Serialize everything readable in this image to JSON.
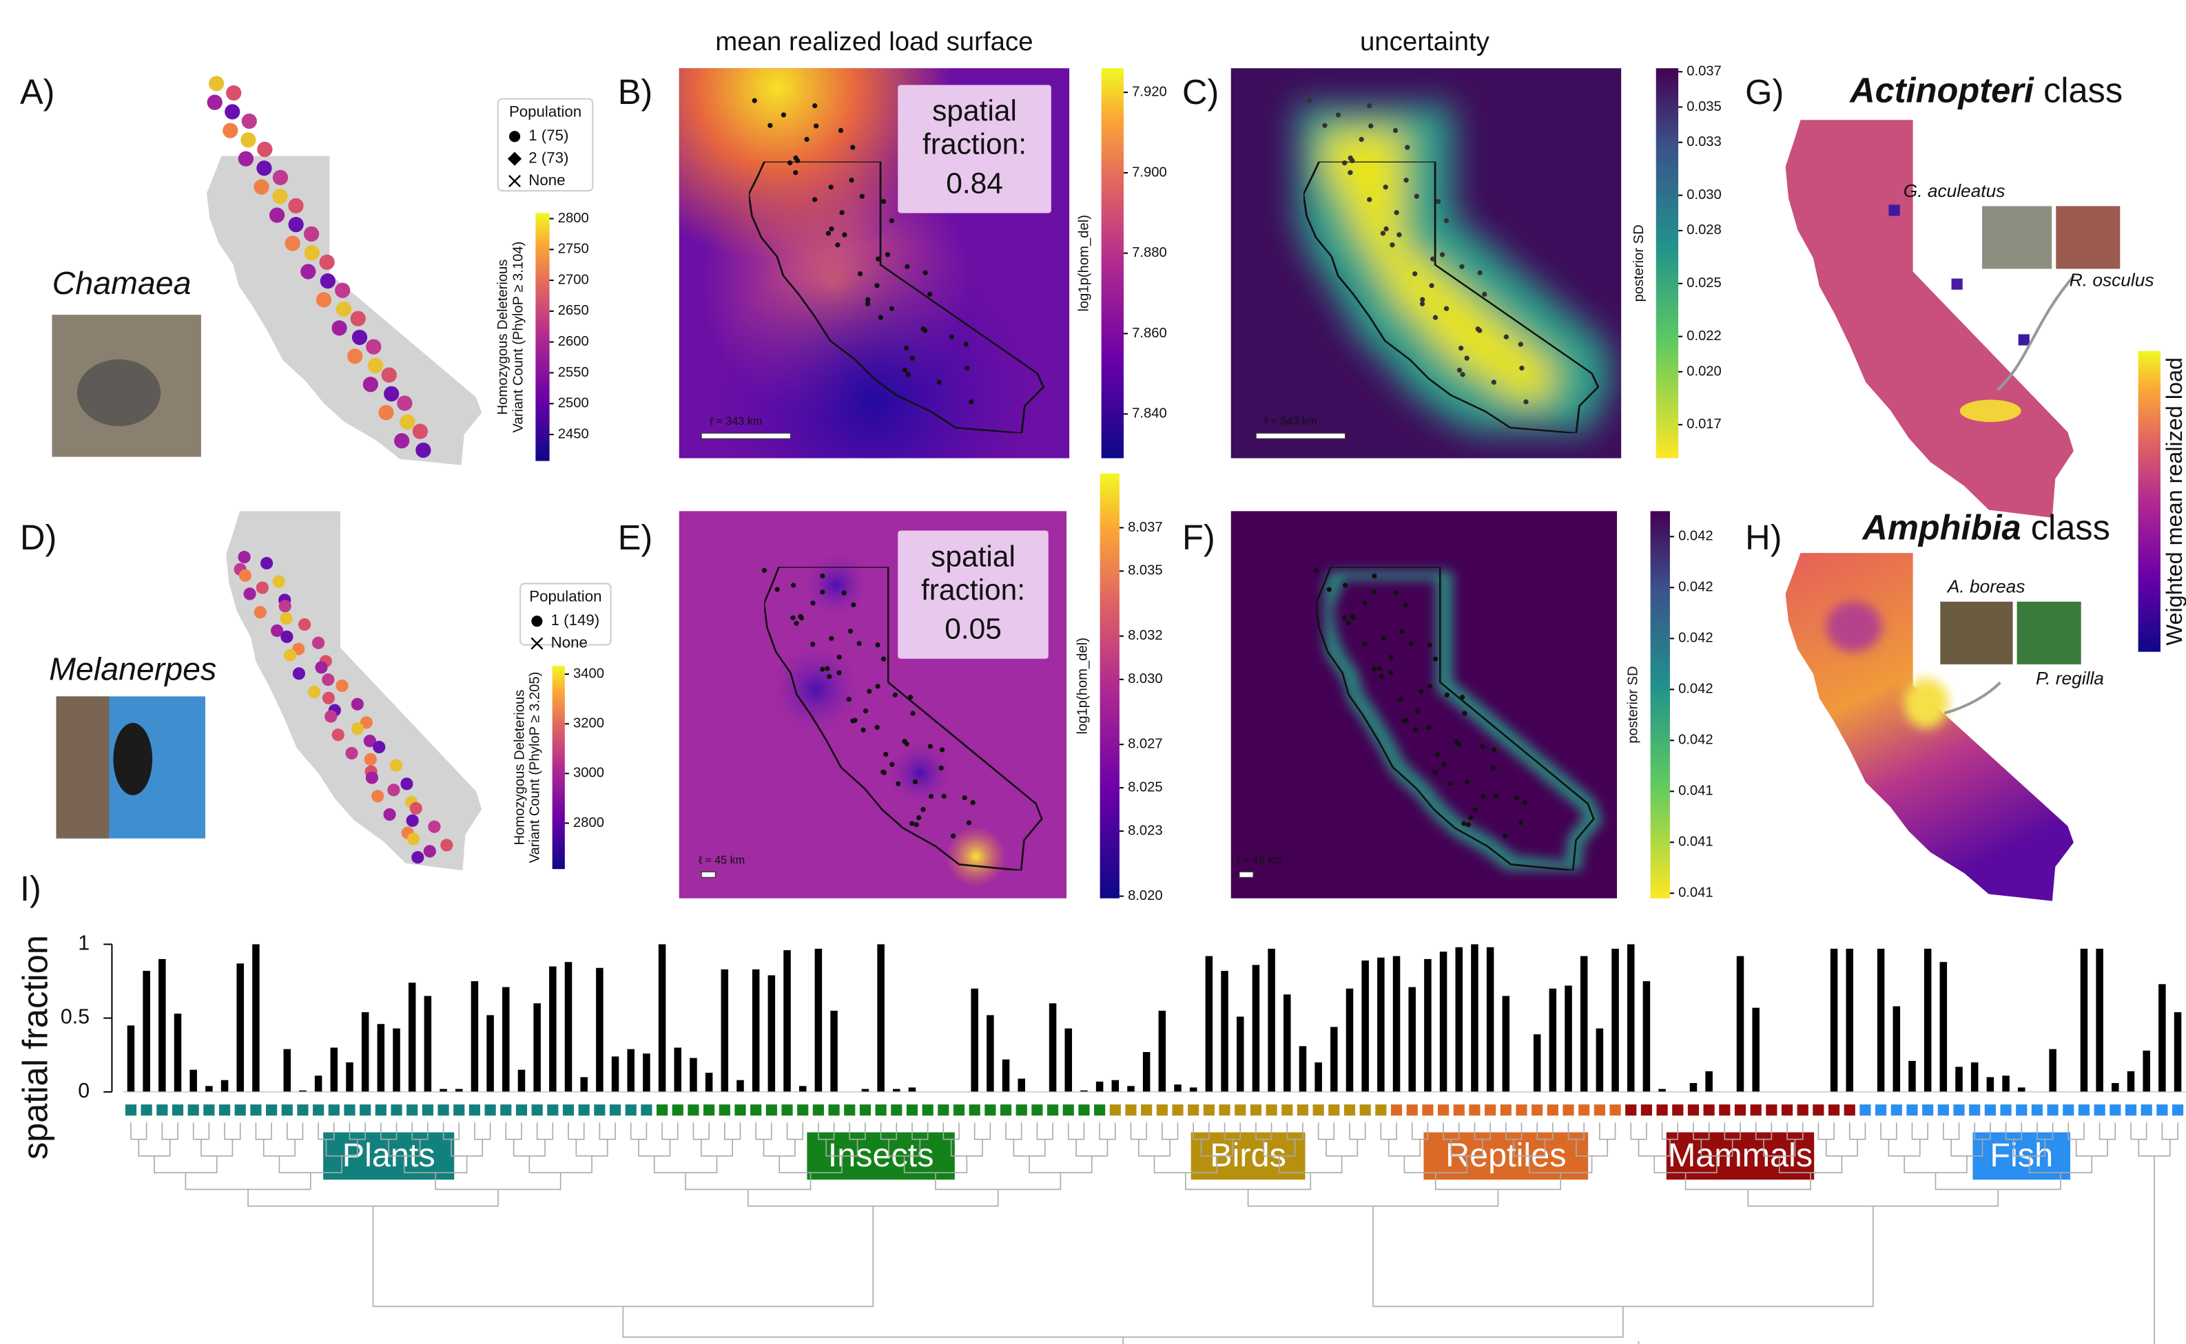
{
  "figure": {
    "column_titles": [
      "mean realized load surface",
      "uncertainty"
    ],
    "panel_labels": [
      "A)",
      "B)",
      "C)",
      "D)",
      "E)",
      "F)",
      "G)",
      "H)"
    ],
    "species": [
      "Chamaea",
      "Melanerpes"
    ],
    "legends": [
      {
        "title": "Population",
        "entries": [
          "1 (75)",
          "2 (73)",
          "None"
        ]
      },
      {
        "title": "Population",
        "entries": [
          "1 (149)",
          "None"
        ]
      }
    ],
    "colorbars": [
      {
        "label_lines": [
          "Homozygous Deleterious",
          "Variant Count (PhyloP ≥ 3.104)"
        ],
        "cmap": "plasma",
        "lim": [
          2407,
          2809
        ],
        "ticks": [
          2450,
          2500,
          2550,
          2600,
          2650,
          2700,
          2750,
          2800
        ]
      },
      {
        "label_lines": [
          "log1p(hom_del)"
        ],
        "cmap": "plasma",
        "lim": [
          7.829,
          7.926
        ],
        "ticks": [
          {
            "value": 7.84,
            "label": "7.840"
          },
          {
            "value": 7.86,
            "label": "7.860"
          },
          {
            "value": 7.88,
            "label": "7.880"
          },
          {
            "value": 7.9,
            "label": "7.900"
          },
          {
            "value": 7.92,
            "label": "7.920"
          }
        ]
      },
      {
        "label_lines": [
          "posterior SD"
        ],
        "cmap": "viridis_r",
        "lim": [
          0.0151,
          0.0372
        ],
        "ticks": [
          0.017,
          {
            "value": 0.02,
            "label": "0.020"
          },
          0.022,
          0.025,
          0.028,
          {
            "value": 0.03,
            "label": "0.030"
          },
          0.033,
          0.035,
          0.037
        ]
      },
      {
        "label_lines": [
          "Homozygous Deleterious",
          "Variant Count (PhyloP ≥ 3.205)"
        ],
        "cmap": "plasma",
        "lim": [
          2615,
          3434
        ],
        "ticks": [
          2800,
          3000,
          3200,
          3400
        ]
      },
      {
        "label_lines": [
          "log1p(hom_del)"
        ],
        "cmap": "plasma",
        "lim": [
          8.0199,
          8.0395
        ],
        "ticks": [
          {
            "value": 8.02,
            "label": "8.020"
          },
          8.023,
          8.025,
          8.027,
          {
            "value": 8.03,
            "label": "8.030"
          },
          8.032,
          8.035,
          8.037
        ]
      },
      {
        "label_lines": [
          "posterior SD"
        ],
        "cmap": "viridis_r",
        "lim": [
          0.04124,
          0.042
        ],
        "ticks": [
          {
            "value": 0.04125,
            "label": "0.041"
          },
          {
            "value": 0.04135,
            "label": "0.041"
          },
          {
            "value": 0.04145,
            "label": "0.041"
          },
          {
            "value": 0.04155,
            "label": "0.042"
          },
          {
            "value": 0.04165,
            "label": "0.042"
          },
          {
            "value": 0.04175,
            "label": "0.042"
          },
          {
            "value": 0.04185,
            "label": "0.042"
          },
          {
            "value": 0.04195,
            "label": "0.042"
          }
        ]
      }
    ],
    "spatial_fraction_boxes": [
      {
        "label_lines": [
          "spatial",
          "fraction:"
        ],
        "value": 0.84
      },
      {
        "label_lines": [
          "spatial",
          "fraction:"
        ],
        "value": 0.05
      }
    ],
    "scale_bars": [
      "ℓ ≈ 343 km",
      "ℓ ≈ 343 km",
      "ℓ ≈ 45 km",
      "ℓ ≈ 45 km"
    ],
    "class_titles": [
      {
        "name": "Actinopteri",
        "suffix": "class"
      },
      {
        "name": "Amphibia",
        "suffix": "class"
      }
    ],
    "species_labels": [
      "G. aculeatus",
      "R. osculus",
      "A. boreas",
      "P. regilla"
    ],
    "load_colorbar": {
      "label": "Weighted mean realized load",
      "cmap": "plasma"
    }
  },
  "chart_data": {
    "type": "bar",
    "panel_label": "I)",
    "ylabel": "spatial fraction",
    "color": "#000000",
    "ylim": [
      0,
      1
    ],
    "yticks": [
      0,
      0.5,
      1
    ],
    "values": [
      0.45,
      0.82,
      0.9,
      0.53,
      0.15,
      0.04,
      0.08,
      0.87,
      1,
      0,
      0.29,
      0.01,
      0.11,
      0.3,
      0.2,
      0.54,
      0.46,
      0.43,
      0.74,
      0.65,
      0.02,
      0.02,
      0.75,
      0.52,
      0.71,
      0.15,
      0.6,
      0.85,
      0.88,
      0.1,
      0.84,
      0.24,
      0.29,
      0.26,
      1,
      0.3,
      0.23,
      0.13,
      0.83,
      0.08,
      0.83,
      0.79,
      0.96,
      0.04,
      0.97,
      0.55,
      0,
      0.02,
      1,
      0.02,
      0.03,
      0,
      0,
      0,
      0.7,
      0.52,
      0.22,
      0.09,
      0,
      0.6,
      0.43,
      0.01,
      0.07,
      0.08,
      0.04,
      0.27,
      0.55,
      0.05,
      0.03,
      0.92,
      0.82,
      0.51,
      0.86,
      0.97,
      0.66,
      0.31,
      0.2,
      0.44,
      0.7,
      0.89,
      0.91,
      0.92,
      0.71,
      0.9,
      0.95,
      0.98,
      1,
      0.98,
      0.65,
      0,
      0.39,
      0.7,
      0.72,
      0.92,
      0.43,
      0.97,
      1,
      0.75,
      0.02,
      0,
      0.06,
      0.14,
      0,
      0.92,
      0.57,
      0,
      0,
      0,
      0,
      0.97,
      0.97,
      0,
      0.97,
      0.58,
      0.21,
      0.97,
      0.88,
      0.17,
      0.2,
      0.1,
      0.11,
      0.03,
      0,
      0.29,
      0,
      0.97,
      0.97,
      0.06,
      0.14,
      0.28,
      0.73,
      0.54
    ],
    "groups": [
      {
        "name": "Plants",
        "color": "#12817e",
        "count": 34
      },
      {
        "name": "Insects",
        "color": "#13821a",
        "count": 29
      },
      {
        "name": "Birds",
        "color": "#b8900f",
        "count": 18
      },
      {
        "name": "Reptiles",
        "color": "#db6a27",
        "count": 15
      },
      {
        "name": "Mammals",
        "color": "#970b0b",
        "count": 15
      },
      {
        "name": "Fish",
        "color": "#2a8ff0",
        "count": 21
      }
    ]
  }
}
